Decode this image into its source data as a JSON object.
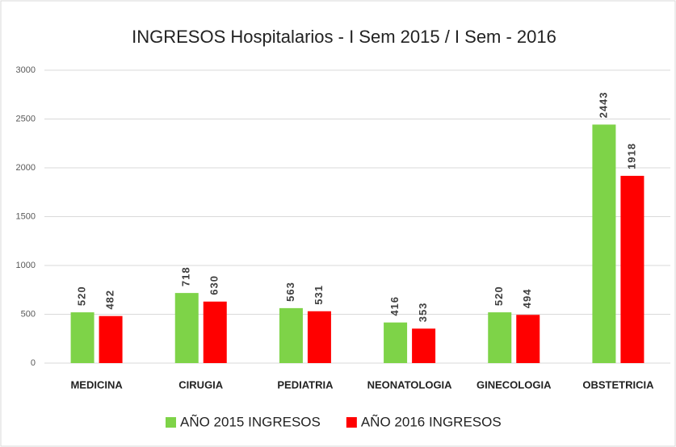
{
  "chart_data": {
    "type": "bar",
    "title": "INGRESOS Hospitalarios - I Sem 2015 / I Sem - 2016",
    "categories": [
      "MEDICINA",
      "CIRUGIA",
      "PEDIATRIA",
      "NEONATOLOGIA",
      "GINECOLOGIA",
      "OBSTETRICIA"
    ],
    "series": [
      {
        "name": "AÑO 2015 INGRESOS",
        "color": "#7ed348",
        "values": [
          520,
          718,
          563,
          416,
          520,
          2443
        ]
      },
      {
        "name": "AÑO 2016 INGRESOS",
        "color": "#ff0000",
        "values": [
          482,
          630,
          531,
          353,
          494,
          1918
        ]
      }
    ],
    "ylim": [
      0,
      3000
    ],
    "yticks": [
      0,
      500,
      1000,
      1500,
      2000,
      2500,
      3000
    ],
    "grid": true,
    "legend": "bottom"
  }
}
